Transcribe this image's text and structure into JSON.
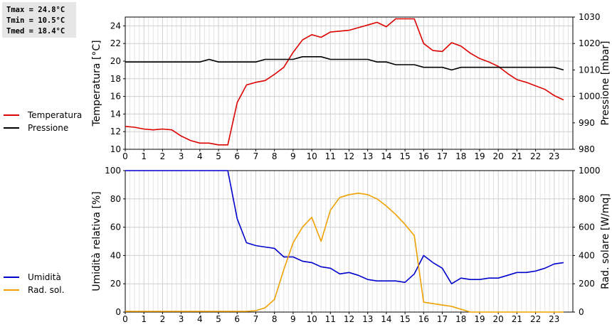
{
  "stats": {
    "tmax": "Tmax = 24.8°C",
    "tmin": "Tmin = 10.5°C",
    "tmed": "Tmed = 18.4°C"
  },
  "legend_top": [
    {
      "label": "Temperatura",
      "color": "#dd0000"
    },
    {
      "label": "Pressione",
      "color": "#000000"
    }
  ],
  "legend_bottom": [
    {
      "label": "Umidità",
      "color": "#0000cc"
    },
    {
      "label": "Rad. sol.",
      "color": "#f0a000"
    }
  ],
  "chart_data": [
    {
      "type": "line",
      "xlim": [
        0,
        24
      ],
      "xticks": [
        "0",
        "1",
        "2",
        "3",
        "4",
        "5",
        "6",
        "7",
        "8",
        "9",
        "10",
        "11",
        "12",
        "13",
        "14",
        "15",
        "16",
        "17",
        "18",
        "19",
        "20",
        "21",
        "22",
        "23"
      ],
      "ylabel": "Temperatura [°C]",
      "ylim": [
        10,
        25
      ],
      "yticks": [
        "10",
        "12",
        "14",
        "16",
        "18",
        "20",
        "22",
        "24"
      ],
      "ylabel_right": "Pressione [mbar]",
      "ylim_right": [
        980,
        1030
      ],
      "yticks_right": [
        "980",
        "990",
        "1000",
        "1010",
        "1020",
        "1030"
      ],
      "grid": true,
      "series": [
        {
          "name": "Temperatura",
          "color": "#dd0000",
          "axis": "left",
          "x": [
            0,
            0.5,
            1,
            1.5,
            2,
            2.5,
            3,
            3.5,
            4,
            4.5,
            5,
            5.5,
            6,
            6.5,
            7,
            7.5,
            8,
            8.5,
            9,
            9.5,
            10,
            10.5,
            11,
            11.5,
            12,
            12.5,
            13,
            13.5,
            14,
            14.5,
            15,
            15.5,
            16,
            16.5,
            17,
            17.5,
            18,
            18.5,
            19,
            19.5,
            20,
            20.5,
            21,
            21.5,
            22,
            22.5,
            23,
            23.5
          ],
          "y": [
            12.6,
            12.5,
            12.3,
            12.2,
            12.3,
            12.2,
            11.5,
            11.0,
            10.7,
            10.7,
            10.5,
            10.5,
            15.3,
            17.3,
            17.6,
            17.8,
            18.5,
            19.3,
            21.0,
            22.4,
            23.0,
            22.7,
            23.3,
            23.4,
            23.5,
            23.8,
            24.1,
            24.4,
            23.9,
            24.8,
            24.8,
            24.8,
            22.0,
            21.2,
            21.1,
            22.1,
            21.7,
            20.9,
            20.3,
            19.9,
            19.4,
            18.6,
            17.9,
            17.6,
            17.2,
            16.8,
            16.1,
            15.6
          ]
        },
        {
          "name": "Pressione",
          "color": "#000000",
          "axis": "right",
          "x": [
            0,
            0.5,
            1,
            1.5,
            2,
            2.5,
            3,
            3.5,
            4,
            4.5,
            5,
            5.5,
            6,
            6.5,
            7,
            7.5,
            8,
            8.5,
            9,
            9.5,
            10,
            10.5,
            11,
            11.5,
            12,
            12.5,
            13,
            13.5,
            14,
            14.5,
            15,
            15.5,
            16,
            16.5,
            17,
            17.5,
            18,
            18.5,
            19,
            19.5,
            20,
            20.5,
            21,
            21.5,
            22,
            22.5,
            23,
            23.5
          ],
          "y": [
            1013,
            1013,
            1013,
            1013,
            1013,
            1013,
            1013,
            1013,
            1013,
            1014,
            1013,
            1013,
            1013,
            1013,
            1013,
            1014,
            1014,
            1014,
            1014,
            1015,
            1015,
            1015,
            1014,
            1014,
            1014,
            1014,
            1014,
            1013,
            1013,
            1012,
            1012,
            1012,
            1011,
            1011,
            1011,
            1010,
            1011,
            1011,
            1011,
            1011,
            1011,
            1011,
            1011,
            1011,
            1011,
            1011,
            1011,
            1010
          ]
        }
      ]
    },
    {
      "type": "line",
      "xlim": [
        0,
        24
      ],
      "xticks": [
        "0",
        "1",
        "2",
        "3",
        "4",
        "5",
        "6",
        "7",
        "8",
        "9",
        "10",
        "11",
        "12",
        "13",
        "14",
        "15",
        "16",
        "17",
        "18",
        "19",
        "20",
        "21",
        "22",
        "23"
      ],
      "ylabel": "Umidità relativa [%]",
      "ylim": [
        0,
        100
      ],
      "yticks": [
        "0",
        "20",
        "40",
        "60",
        "80",
        "100"
      ],
      "ylabel_right": "Rad. solare [W/mq]",
      "ylim_right": [
        0,
        1000
      ],
      "yticks_right": [
        "0",
        "200",
        "400",
        "600",
        "800",
        "1000"
      ],
      "grid": true,
      "series": [
        {
          "name": "Umidità",
          "color": "#0000cc",
          "axis": "left",
          "x": [
            0,
            0.5,
            1,
            1.5,
            2,
            2.5,
            3,
            3.5,
            4,
            4.5,
            5,
            5.5,
            6,
            6.5,
            7,
            7.5,
            8,
            8.5,
            9,
            9.5,
            10,
            10.5,
            11,
            11.5,
            12,
            12.5,
            13,
            13.5,
            14,
            14.5,
            15,
            15.5,
            16,
            16.5,
            17,
            17.5,
            18,
            18.5,
            19,
            19.5,
            20,
            20.5,
            21,
            21.5,
            22,
            22.5,
            23,
            23.5
          ],
          "y": [
            100,
            100,
            100,
            100,
            100,
            100,
            100,
            100,
            100,
            100,
            100,
            100,
            66,
            49,
            47,
            46,
            45,
            39,
            39,
            36,
            35,
            32,
            31,
            27,
            28,
            26,
            23,
            22,
            22,
            22,
            21,
            27,
            40,
            35,
            31,
            20,
            24,
            23,
            23,
            24,
            24,
            26,
            28,
            28,
            29,
            31,
            34,
            35
          ]
        },
        {
          "name": "Rad. sol.",
          "color": "#f0a000",
          "axis": "right",
          "x": [
            0,
            0.5,
            1,
            1.5,
            2,
            2.5,
            3,
            3.5,
            4,
            4.5,
            5,
            5.5,
            6,
            6.5,
            7,
            7.5,
            8,
            8.5,
            9,
            9.5,
            10,
            10.5,
            11,
            11.5,
            12,
            12.5,
            13,
            13.5,
            14,
            14.5,
            15,
            15.5,
            16,
            16.5,
            17,
            17.5,
            18,
            18.5,
            19,
            19.5,
            20,
            20.5,
            21,
            21.5,
            22,
            22.5,
            23,
            23.5
          ],
          "y": [
            5,
            5,
            5,
            5,
            5,
            5,
            5,
            5,
            5,
            5,
            5,
            5,
            5,
            5,
            10,
            30,
            90,
            300,
            490,
            600,
            670,
            500,
            720,
            810,
            830,
            840,
            830,
            800,
            750,
            690,
            620,
            540,
            70,
            60,
            50,
            40,
            20,
            0,
            0,
            0,
            0,
            0,
            0,
            0,
            0,
            0,
            0,
            0
          ]
        }
      ]
    }
  ]
}
